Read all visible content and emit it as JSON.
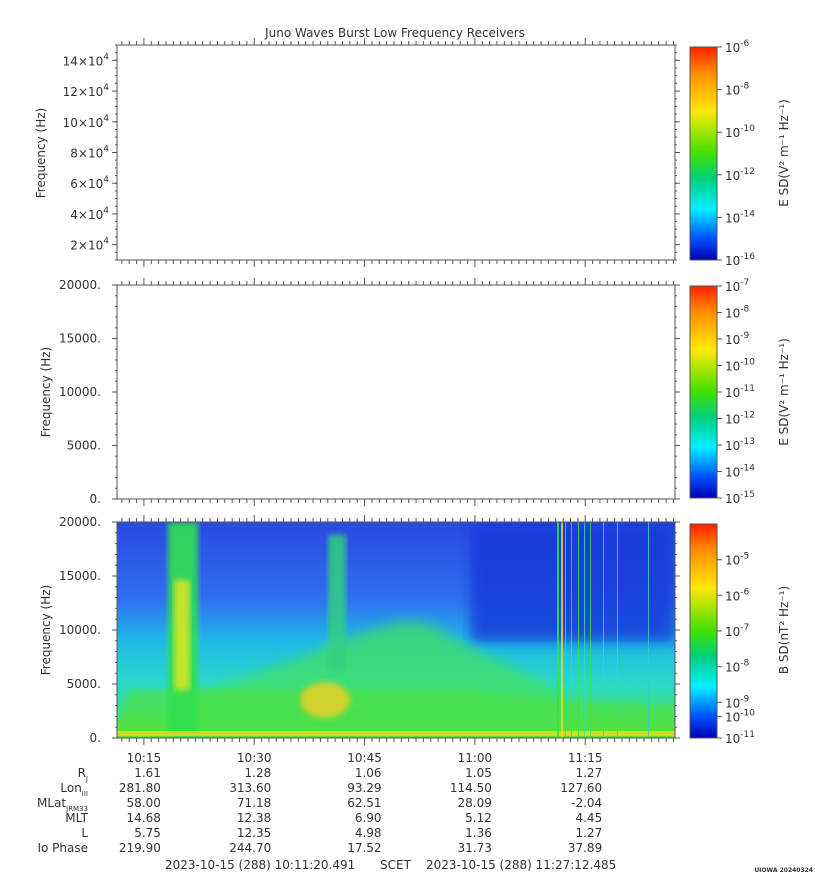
{
  "title": "Juno Waves Burst Low Frequency Receivers",
  "chart_data": [
    {
      "type": "heatmap",
      "panel": "E-field high band",
      "ylabel": "Frequency (Hz)",
      "ylim": [
        10000,
        150000
      ],
      "yticks": [
        {
          "value": 20000,
          "mant": "2×10",
          "exp": "4"
        },
        {
          "value": 40000,
          "mant": "4×10",
          "exp": "4"
        },
        {
          "value": 60000,
          "mant": "6×10",
          "exp": "4"
        },
        {
          "value": 80000,
          "mant": "8×10",
          "exp": "4"
        },
        {
          "value": 100000,
          "mant": "10×10",
          "exp": "4"
        },
        {
          "value": 120000,
          "mant": "12×10",
          "exp": "4"
        },
        {
          "value": 140000,
          "mant": "14×10",
          "exp": "4"
        }
      ],
      "colorbar_label": "E SD(V² m⁻¹ Hz⁻¹)",
      "colorbar_ticks": [
        {
          "exp": "-6",
          "pos": 0.0
        },
        {
          "exp": "-8",
          "pos": 0.2
        },
        {
          "exp": "-10",
          "pos": 0.4
        },
        {
          "exp": "-12",
          "pos": 0.6
        },
        {
          "exp": "-14",
          "pos": 0.8
        },
        {
          "exp": "-16",
          "pos": 1.0
        }
      ],
      "data": "empty"
    },
    {
      "type": "heatmap",
      "panel": "E-field low band",
      "ylabel": "Frequency (Hz)",
      "ylim": [
        0,
        20000
      ],
      "yticks": [
        {
          "value": 0,
          "label": "0."
        },
        {
          "value": 5000,
          "label": "5000."
        },
        {
          "value": 10000,
          "label": "10000."
        },
        {
          "value": 15000,
          "label": "15000."
        },
        {
          "value": 20000,
          "label": "20000."
        }
      ],
      "colorbar_label": "E SD(V² m⁻¹ Hz⁻¹)",
      "colorbar_ticks": [
        {
          "exp": "-7",
          "pos": 0.0
        },
        {
          "exp": "-8",
          "pos": 0.125
        },
        {
          "exp": "-9",
          "pos": 0.25
        },
        {
          "exp": "-10",
          "pos": 0.375
        },
        {
          "exp": "-11",
          "pos": 0.5
        },
        {
          "exp": "-12",
          "pos": 0.625
        },
        {
          "exp": "-13",
          "pos": 0.75
        },
        {
          "exp": "-14",
          "pos": 0.875
        },
        {
          "exp": "-15",
          "pos": 1.0
        }
      ],
      "data": "empty"
    },
    {
      "type": "heatmap",
      "panel": "B-field",
      "ylabel": "Frequency (Hz)",
      "ylim": [
        0,
        20000
      ],
      "yticks": [
        {
          "value": 0,
          "label": "0."
        },
        {
          "value": 5000,
          "label": "5000."
        },
        {
          "value": 10000,
          "label": "10000."
        },
        {
          "value": 15000,
          "label": "15000."
        },
        {
          "value": 20000,
          "label": "20000."
        }
      ],
      "colorbar_label": "B SD(nT² Hz⁻¹)",
      "colorbar_ticks": [
        {
          "exp": "-5",
          "pos": 0.167
        },
        {
          "exp": "-6",
          "pos": 0.333
        },
        {
          "exp": "-7",
          "pos": 0.5
        },
        {
          "exp": "-8",
          "pos": 0.667
        },
        {
          "exp": "-9",
          "pos": 0.833
        },
        {
          "exp": "-10",
          "pos": 0.9
        },
        {
          "exp": "-11",
          "pos": 1.0
        }
      ],
      "x_range": [
        "10:11:20",
        "11:27:12"
      ],
      "features": [
        {
          "name": "intense emission band",
          "t_start": "10:20",
          "t_end": "10:22",
          "f_min": 500,
          "f_max": 20000,
          "level": "high"
        },
        {
          "name": "emission band",
          "t_start": "10:40",
          "t_end": "10:41",
          "f_min": 7000,
          "f_max": 19000,
          "level": "medium"
        },
        {
          "name": "broadband hump",
          "t_start": "10:22",
          "t_end": "11:00",
          "f_min": 500,
          "f_max": 9000,
          "level": "medium"
        },
        {
          "name": "broadband spikes",
          "t_start": "11:10",
          "t_end": "11:17",
          "f_min": 0,
          "f_max": 20000,
          "level": "medium"
        }
      ]
    }
  ],
  "time_axis": {
    "labels": [
      "10:15",
      "10:30",
      "10:45",
      "11:00",
      "11:15"
    ]
  },
  "ephemeris": {
    "row_labels": [
      "R",
      "Lon",
      "MLat",
      "MLT",
      "L",
      "Io Phase"
    ],
    "row_subscripts": [
      "J",
      "III",
      "JRM33",
      "",
      "",
      ""
    ],
    "rows": [
      [
        "1.61",
        "1.28",
        "1.06",
        "1.05",
        "1.27"
      ],
      [
        "281.80",
        "313.60",
        "93.29",
        "114.50",
        "127.60"
      ],
      [
        "58.00",
        "71.18",
        "62.51",
        "28.09",
        "-2.04"
      ],
      [
        "14.68",
        "12.38",
        "6.90",
        "5.12",
        "4.45"
      ],
      [
        "5.75",
        "12.35",
        "4.98",
        "1.36",
        "1.27"
      ],
      [
        "219.90",
        "244.70",
        "17.52",
        "31.73",
        "37.89"
      ]
    ]
  },
  "footer": {
    "start": "2023-10-15 (288) 10:11:20.491",
    "scet": "SCET",
    "end": "2023-10-15 (288) 11:27:12.485",
    "stamp": "UIOWA 20240324"
  },
  "colors": {
    "colormap": [
      "#ff2000",
      "#ff8c00",
      "#ffe800",
      "#40e000",
      "#00d080",
      "#00f0ff",
      "#0050ff",
      "#0000b0"
    ],
    "background": "#2040e0"
  }
}
